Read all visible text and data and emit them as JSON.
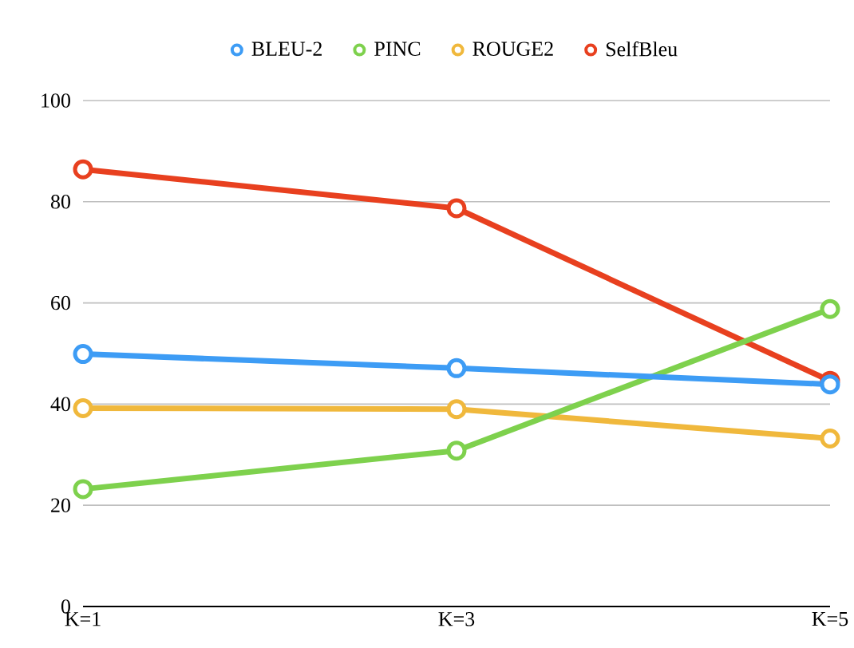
{
  "chart_data": {
    "type": "line",
    "categories": [
      "K=1",
      "K=3",
      "K=5"
    ],
    "series": [
      {
        "name": "BLEU-2",
        "color": "#3d9cf5",
        "values": [
          49.9,
          47.1,
          43.9
        ]
      },
      {
        "name": "PINC",
        "color": "#7ed14d",
        "values": [
          23.2,
          30.8,
          58.8
        ]
      },
      {
        "name": "ROUGE2",
        "color": "#f0b83c",
        "values": [
          39.2,
          39.0,
          33.2
        ]
      },
      {
        "name": "SelfBleu",
        "color": "#e8401f",
        "values": [
          86.4,
          78.7,
          44.6
        ]
      }
    ],
    "ylim": [
      0,
      100
    ],
    "yticks": [
      0,
      20,
      40,
      60,
      80,
      100
    ],
    "grid": "y",
    "legend": "top",
    "marker": "circle",
    "line_style": "solid"
  }
}
